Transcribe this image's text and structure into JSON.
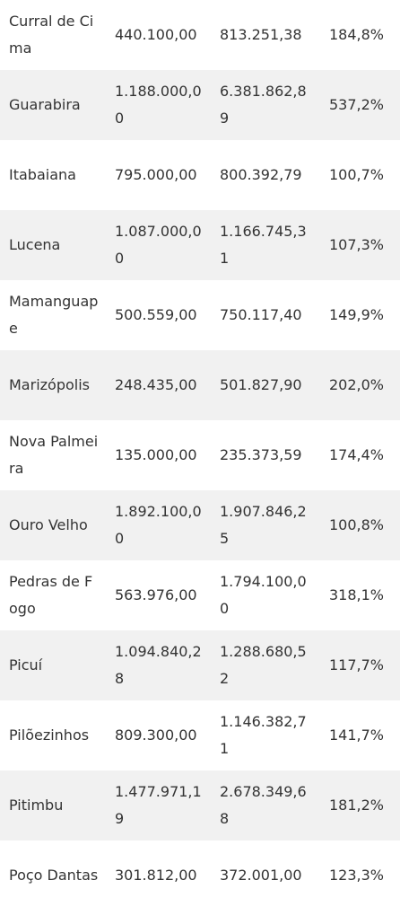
{
  "table": {
    "rows": [
      {
        "name": "Curral de Cima",
        "value_a": "440.100,00",
        "value_b": "813.251,38",
        "percent": "184,8%"
      },
      {
        "name": "Guarabira",
        "value_a": "1.188.000,00",
        "value_b": "6.381.862,89",
        "percent": "537,2%"
      },
      {
        "name": "Itabaiana",
        "value_a": "795.000,00",
        "value_b": "800.392,79",
        "percent": "100,7%"
      },
      {
        "name": "Lucena",
        "value_a": "1.087.000,00",
        "value_b": "1.166.745,31",
        "percent": "107,3%"
      },
      {
        "name": "Mamanguape",
        "value_a": "500.559,00",
        "value_b": "750.117,40",
        "percent": "149,9%"
      },
      {
        "name": "Marizópolis",
        "value_a": "248.435,00",
        "value_b": "501.827,90",
        "percent": "202,0%"
      },
      {
        "name": "Nova Palmeira",
        "value_a": "135.000,00",
        "value_b": "235.373,59",
        "percent": "174,4%"
      },
      {
        "name": "Ouro Velho",
        "value_a": "1.892.100,00",
        "value_b": "1.907.846,25",
        "percent": "100,8%"
      },
      {
        "name": "Pedras de Fogo",
        "value_a": "563.976,00",
        "value_b": "1.794.100,00",
        "percent": "318,1%"
      },
      {
        "name": "Picuí",
        "value_a": "1.094.840,28",
        "value_b": "1.288.680,52",
        "percent": "117,7%"
      },
      {
        "name": "Pilõezinhos",
        "value_a": "809.300,00",
        "value_b": "1.146.382,71",
        "percent": "141,7%"
      },
      {
        "name": "Pitimbu",
        "value_a": "1.477.971,19",
        "value_b": "2.678.349,68",
        "percent": "181,2%"
      },
      {
        "name": "Poço Dantas",
        "value_a": "301.812,00",
        "value_b": "372.001,00",
        "percent": "123,3%"
      }
    ]
  }
}
